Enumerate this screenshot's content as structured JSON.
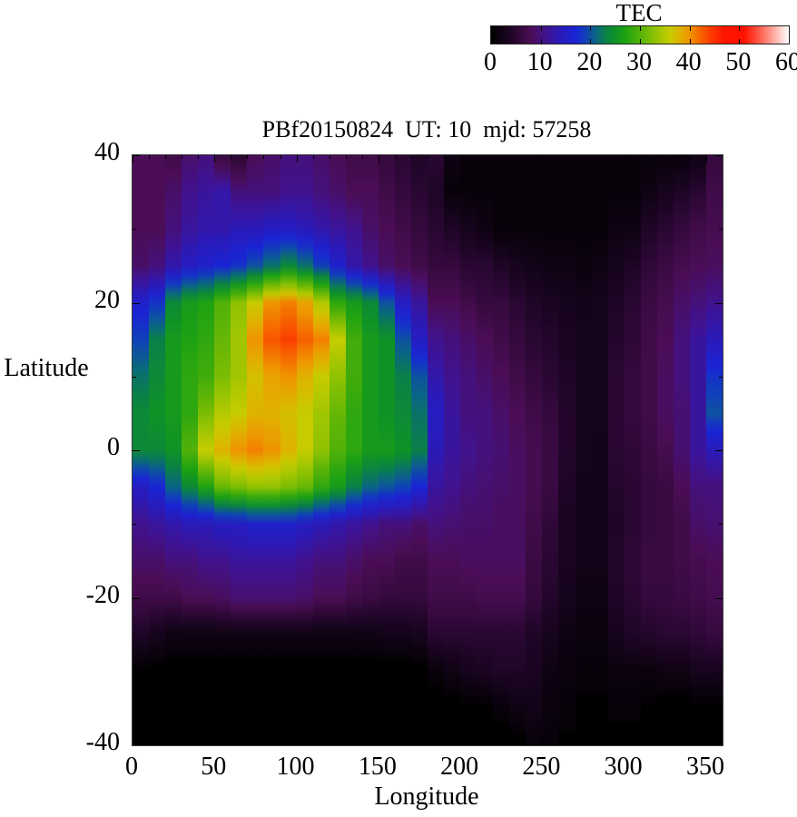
{
  "figure": {
    "title": "PBf20150824  UT: 10  mjd: 57258",
    "background": "#ffffff"
  },
  "colorbar": {
    "title": "TEC",
    "min": 0,
    "max": 60,
    "tick_values": [
      0,
      10,
      20,
      30,
      40,
      50,
      60
    ],
    "tick_labels": [
      "0",
      "10",
      "20",
      "30",
      "40",
      "50",
      "60"
    ]
  },
  "axes": {
    "x": {
      "label": "Longitude",
      "range": [
        0,
        360
      ],
      "major_ticks": [
        0,
        50,
        100,
        150,
        200,
        250,
        300,
        350
      ],
      "minor_tick_step": 10
    },
    "y": {
      "label": "Latitude",
      "range": [
        -40,
        40
      ],
      "major_ticks": [
        40,
        20,
        0,
        -20,
        -40
      ],
      "minor_tick_step": 10
    }
  },
  "palette": {
    "stops": [
      [
        0,
        "#000000"
      ],
      [
        4,
        "#1e0526"
      ],
      [
        8,
        "#4b0d55"
      ],
      [
        11,
        "#41128e"
      ],
      [
        14,
        "#2a1ab8"
      ],
      [
        17,
        "#1a24d4"
      ],
      [
        19,
        "#1040b8"
      ],
      [
        21,
        "#0a6486"
      ],
      [
        23,
        "#0a8048"
      ],
      [
        25,
        "#0e9226"
      ],
      [
        27,
        "#1ea212"
      ],
      [
        30,
        "#52b108"
      ],
      [
        33,
        "#8fc202"
      ],
      [
        36,
        "#c6cc00"
      ],
      [
        38,
        "#dfb200"
      ],
      [
        40,
        "#ef9400"
      ],
      [
        42,
        "#f66a00"
      ],
      [
        44,
        "#fb3f00"
      ],
      [
        47,
        "#ff1400"
      ],
      [
        51,
        "#ff1200"
      ],
      [
        54,
        "#ff5a48"
      ],
      [
        57,
        "#ffaca2"
      ],
      [
        60,
        "#ffffff"
      ]
    ]
  },
  "chart_data": {
    "type": "heatmap",
    "title": "PBf20150824  UT: 10  mjd: 57258",
    "xlabel": "Longitude",
    "ylabel": "Latitude",
    "colorbar_label": "TEC",
    "x_range": [
      0,
      360
    ],
    "y_range": [
      -40,
      40
    ],
    "value_range": [
      0,
      60
    ],
    "lon_cell_deg": 10,
    "lat_cell_deg": 5,
    "lats": [
      40,
      35,
      30,
      25,
      20,
      15,
      10,
      5,
      0,
      -5,
      -10,
      -15,
      -20,
      -25,
      -30,
      -35,
      -40
    ],
    "lons": [
      0,
      10,
      20,
      30,
      40,
      50,
      60,
      70,
      80,
      90,
      100,
      110,
      120,
      130,
      140,
      150,
      160,
      170,
      180,
      190,
      200,
      210,
      220,
      230,
      240,
      250,
      260,
      270,
      280,
      290,
      300,
      310,
      320,
      330,
      340,
      350
    ],
    "values_by_lat": [
      [
        8,
        8,
        7,
        9,
        10,
        6,
        5,
        8,
        9,
        10,
        10,
        9,
        8,
        7,
        7,
        6,
        5,
        4,
        5,
        2,
        1,
        1,
        1,
        1,
        1,
        1,
        1,
        1,
        1,
        1,
        1,
        1,
        1,
        1,
        2,
        6
      ],
      [
        8,
        8,
        9,
        11,
        12,
        13,
        10,
        10,
        10,
        11,
        11,
        10,
        9,
        8,
        8,
        7,
        6,
        5,
        4,
        1,
        1,
        1,
        1,
        1,
        1,
        1,
        1,
        1,
        1,
        1,
        1,
        2,
        3,
        4,
        5,
        7
      ],
      [
        8,
        8,
        10,
        12,
        13,
        13,
        14,
        14,
        15,
        15,
        14,
        13,
        12,
        11,
        9,
        8,
        7,
        6,
        5,
        4,
        3,
        2,
        1,
        1,
        1,
        1,
        1,
        1,
        1,
        2,
        2,
        4,
        5,
        6,
        7,
        7.5
      ],
      [
        9,
        10,
        13,
        15,
        16,
        17,
        18,
        20,
        22,
        24,
        22,
        19,
        16,
        13,
        11,
        9,
        8,
        7,
        6,
        6,
        5,
        5,
        4,
        3,
        2.5,
        2,
        2,
        1.5,
        2,
        3,
        4,
        5.5,
        6.5,
        7.5,
        8,
        8.5
      ],
      [
        16,
        18,
        24,
        26,
        27,
        30,
        33,
        36,
        40,
        41,
        39,
        35,
        28,
        26,
        24,
        20,
        15,
        12,
        8,
        8,
        7,
        6,
        6,
        5,
        4,
        3.5,
        3,
        2.5,
        3,
        4,
        5,
        6.5,
        7.5,
        9,
        10,
        11
      ],
      [
        19,
        23,
        26,
        27,
        28,
        31,
        34,
        40,
        43,
        44,
        42.5,
        41,
        36,
        29,
        26,
        25,
        20,
        15,
        11,
        10,
        9,
        8,
        7,
        6,
        5,
        4.5,
        3.5,
        3,
        3,
        4.5,
        5.5,
        7,
        8,
        10,
        12,
        14
      ],
      [
        22,
        24,
        26,
        28,
        29,
        32,
        34,
        37,
        39,
        40,
        38,
        36,
        33,
        29,
        26,
        25,
        23,
        20,
        13,
        11,
        10,
        9,
        8,
        7,
        6,
        5,
        4,
        3,
        3,
        5,
        6,
        7,
        8.5,
        10,
        12,
        18
      ],
      [
        24,
        25,
        26,
        28,
        32,
        35,
        36,
        38,
        38,
        37,
        36,
        34,
        31,
        28,
        26,
        25,
        24,
        22,
        15,
        12,
        10,
        10,
        9,
        8,
        7,
        6,
        4.5,
        3,
        3,
        5,
        6,
        7,
        8.5,
        9.5,
        12,
        20
      ],
      [
        24,
        24,
        25,
        30,
        36,
        38,
        40,
        41,
        40,
        38,
        36,
        33,
        30,
        28,
        26,
        26,
        25,
        23,
        14,
        12,
        11,
        10,
        9.5,
        8.5,
        7.5,
        6.5,
        4.5,
        3,
        2.5,
        5,
        5.5,
        6.5,
        7.5,
        9.5,
        12,
        14
      ],
      [
        15,
        17,
        21,
        24,
        27,
        31,
        32,
        33,
        33,
        32,
        31,
        28,
        26,
        23,
        21,
        20,
        19,
        17,
        12,
        11,
        10,
        9.5,
        9,
        8.5,
        7.5,
        6.5,
        4,
        2.5,
        2.5,
        4.5,
        5,
        6,
        6.5,
        8,
        10,
        10
      ],
      [
        11,
        12,
        13,
        14,
        14,
        15,
        15,
        16,
        16,
        16,
        15,
        14,
        13,
        12,
        11,
        10,
        10,
        9,
        10,
        9.5,
        9,
        9,
        8.5,
        8.5,
        7,
        5.5,
        3.5,
        2.5,
        2.5,
        4,
        5,
        6,
        6.5,
        7,
        9,
        9.5
      ],
      [
        9,
        9,
        10,
        10,
        11,
        11,
        12,
        12,
        12,
        12,
        11,
        10,
        10,
        9,
        8,
        8,
        7,
        7,
        8,
        8,
        8.5,
        8.5,
        8.5,
        8.5,
        6.5,
        5,
        3.5,
        2.5,
        2.5,
        4.5,
        5.5,
        6.5,
        6.5,
        7,
        7.5,
        8
      ],
      [
        7,
        7,
        7,
        8,
        8,
        8.5,
        9.5,
        9.5,
        9.5,
        9.5,
        9,
        8,
        8,
        7,
        6.5,
        6,
        6,
        6,
        7,
        7,
        7,
        7.5,
        7.5,
        7.5,
        6,
        4.5,
        3,
        2,
        2,
        4,
        5,
        6,
        6,
        6.5,
        7,
        7.5
      ],
      [
        4,
        3,
        2,
        2,
        2,
        2,
        2,
        2,
        2,
        2,
        2,
        2,
        2,
        2,
        2,
        2.5,
        2.5,
        3,
        5,
        5,
        5,
        5,
        5,
        5,
        4,
        3,
        2,
        1.5,
        1.5,
        3,
        4,
        4.5,
        5,
        5,
        5.5,
        6
      ],
      [
        0,
        0,
        0,
        0,
        0,
        0,
        0,
        0,
        0,
        0,
        0,
        0,
        0,
        0,
        0,
        0,
        0,
        0,
        1,
        2,
        3,
        3.5,
        4,
        4,
        3.5,
        2,
        1.5,
        1,
        1,
        1.5,
        1.5,
        1.5,
        2,
        2,
        3,
        3
      ],
      [
        0,
        0,
        0,
        0,
        0,
        0,
        0,
        0,
        0,
        0,
        0,
        0,
        0,
        0,
        0,
        0,
        0,
        0,
        0,
        0,
        0,
        0,
        1,
        2,
        2.5,
        1.5,
        1,
        0.5,
        0.5,
        1,
        1,
        0.5,
        0,
        0,
        0,
        0
      ],
      [
        0,
        0,
        0,
        0,
        0,
        0,
        0,
        0,
        0,
        0,
        0,
        0,
        0,
        0,
        0,
        0,
        0,
        0,
        0,
        0,
        0,
        0,
        0,
        0,
        1,
        1,
        0.5,
        0,
        0,
        0,
        0,
        0,
        0,
        0,
        0,
        0
      ]
    ]
  }
}
